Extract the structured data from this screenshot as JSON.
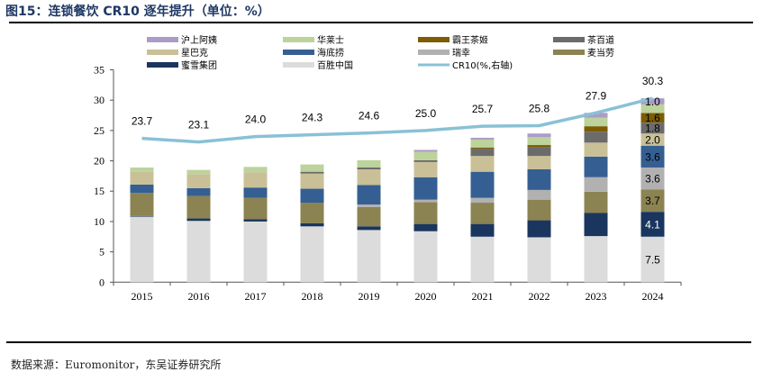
{
  "header": {
    "title": "图15：连锁餐饮 CR10 逐年提升（单位：%）"
  },
  "footer": {
    "source": "数据来源：Euromonitor，东吴证券研究所"
  },
  "chart_data": {
    "type": "bar",
    "stacked": true,
    "title": "连锁餐饮 CR10 逐年提升（单位：%）",
    "xlabel": "",
    "ylabel": "",
    "ylim": [
      0,
      35
    ],
    "yticks": [
      0,
      5,
      10,
      15,
      20,
      25,
      30,
      35
    ],
    "grid": false,
    "legend_position": "top",
    "categories": [
      "2015",
      "2016",
      "2017",
      "2018",
      "2019",
      "2020",
      "2021",
      "2022",
      "2023",
      "2024"
    ],
    "series": [
      {
        "name": "百胜中国",
        "color": "#dcdcdc",
        "values": [
          10.8,
          10.1,
          10.0,
          9.2,
          8.6,
          8.4,
          7.5,
          7.4,
          7.6,
          7.5
        ],
        "labels": [
          null,
          null,
          null,
          null,
          null,
          null,
          null,
          null,
          null,
          "7.5"
        ],
        "label_color": "#000000"
      },
      {
        "name": "蜜雪集团",
        "color": "#1a355e",
        "values": [
          0.1,
          0.4,
          0.4,
          0.5,
          0.6,
          1.2,
          2.1,
          2.8,
          3.8,
          4.1
        ],
        "labels": [
          null,
          null,
          null,
          null,
          null,
          null,
          null,
          null,
          null,
          "4.1"
        ],
        "label_color": "#ffffff"
      },
      {
        "name": "麦当劳",
        "color": "#8b8351",
        "values": [
          3.8,
          3.7,
          3.5,
          3.4,
          3.2,
          3.6,
          3.5,
          3.4,
          3.5,
          3.7
        ],
        "labels": [
          null,
          null,
          null,
          null,
          null,
          null,
          null,
          null,
          null,
          "3.7"
        ],
        "label_color": "#000000"
      },
      {
        "name": "瑞幸",
        "color": "#b1b1b1",
        "values": [
          0,
          0,
          0,
          0,
          0.4,
          0.4,
          0.8,
          1.6,
          2.4,
          3.6
        ],
        "labels": [
          null,
          null,
          null,
          null,
          null,
          null,
          null,
          null,
          null,
          "3.6"
        ],
        "label_color": "#000000"
      },
      {
        "name": "海底捞",
        "color": "#355f92",
        "values": [
          1.4,
          1.3,
          1.7,
          2.3,
          3.2,
          3.7,
          4.3,
          3.4,
          3.4,
          3.6
        ],
        "labels": [
          null,
          null,
          null,
          null,
          null,
          null,
          null,
          null,
          null,
          "3.6"
        ],
        "label_color": "#000000"
      },
      {
        "name": "星巴克",
        "color": "#c9c097",
        "values": [
          2.1,
          2.3,
          2.5,
          2.5,
          2.6,
          2.5,
          2.6,
          2.2,
          2.3,
          2.0
        ],
        "labels": [
          null,
          null,
          null,
          null,
          null,
          null,
          null,
          null,
          null,
          "2.0"
        ],
        "label_color": "#000000"
      },
      {
        "name": "茶百道",
        "color": "#6b6b6b",
        "values": [
          0,
          0,
          0,
          0.3,
          0.3,
          0.3,
          1.2,
          1.4,
          1.8,
          1.8
        ],
        "labels": [
          null,
          null,
          null,
          null,
          null,
          null,
          null,
          null,
          null,
          "1.8"
        ],
        "label_color": "#000000"
      },
      {
        "name": "霸王茶姬",
        "color": "#7d5c05",
        "values": [
          0,
          0,
          0,
          0,
          0,
          0,
          0.2,
          0.4,
          0.9,
          1.6
        ],
        "labels": [
          null,
          null,
          null,
          null,
          null,
          null,
          null,
          null,
          null,
          "1.6"
        ],
        "label_color": "#000000"
      },
      {
        "name": "华莱士",
        "color": "#bcd39b",
        "values": [
          0.7,
          0.7,
          0.9,
          1.2,
          1.2,
          1.4,
          1.3,
          1.3,
          1.4,
          1.4
        ],
        "labels": [
          null,
          null,
          null,
          null,
          null,
          null,
          null,
          null,
          null,
          null
        ],
        "label_color": "#000000"
      },
      {
        "name": "沪上阿姨",
        "color": "#ab9cc7",
        "values": [
          0,
          0,
          0,
          0,
          0,
          0.3,
          0.3,
          0.6,
          0.8,
          1.0
        ],
        "labels": [
          null,
          null,
          null,
          null,
          null,
          null,
          null,
          null,
          null,
          "1.0"
        ],
        "label_color": "#000000"
      }
    ],
    "line_series": {
      "name": "CR10(%,右轴)",
      "axis": "right",
      "color": "#89c1d6",
      "values": [
        23.7,
        23.1,
        24.0,
        24.3,
        24.6,
        25.0,
        25.7,
        25.8,
        27.9,
        30.3
      ],
      "labels": [
        "23.7",
        "23.1",
        "24.0",
        "24.3",
        "24.6",
        "25.0",
        "25.7",
        "25.8",
        "27.9",
        "30.3"
      ]
    },
    "legend": [
      "沪上阿姨",
      "华莱士",
      "霸王茶姬",
      "茶百道",
      "星巴克",
      "海底捞",
      "瑞幸",
      "麦当劳",
      "蜜雪集团",
      "百胜中国",
      "CR10(%,右轴)"
    ]
  }
}
